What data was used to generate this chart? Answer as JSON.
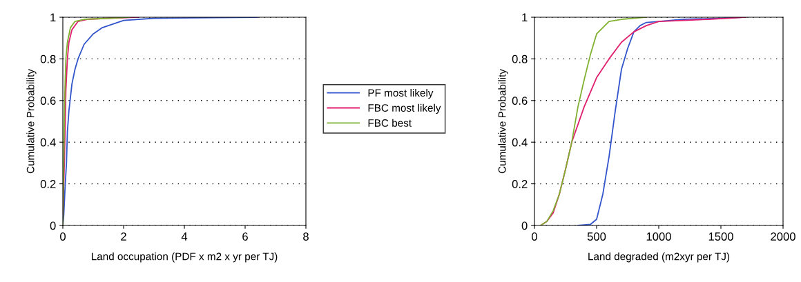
{
  "chart_data": [
    {
      "type": "line",
      "xlabel": "Land occupation (PDF x m2 x yr per TJ)",
      "ylabel": "Cumulative Probability",
      "xlim": [
        0,
        8
      ],
      "xticks": [
        0,
        2,
        4,
        6,
        8
      ],
      "ylim": [
        0,
        1
      ],
      "yticks": [
        0,
        0.2,
        0.4,
        0.6,
        0.8,
        1
      ],
      "grid": "y",
      "legend": "right",
      "marker": "none",
      "line_style": "solid",
      "series": [
        {
          "name": "PF most likely",
          "color": "#3355cc",
          "x": [
            0,
            0.03,
            0.08,
            0.12,
            0.15,
            0.2,
            0.3,
            0.4,
            0.5,
            0.7,
            1,
            1.3,
            1.7,
            2,
            3,
            5,
            6.4
          ],
          "values": [
            0,
            0.05,
            0.2,
            0.3,
            0.45,
            0.55,
            0.68,
            0.75,
            0.8,
            0.87,
            0.92,
            0.95,
            0.97,
            0.985,
            0.995,
            0.998,
            1
          ]
        },
        {
          "name": "FBC most likely",
          "color": "#e0206e",
          "x": [
            0,
            0.02,
            0.05,
            0.08,
            0.1,
            0.15,
            0.2,
            0.3,
            0.5,
            0.8,
            1.5,
            2.5
          ],
          "values": [
            0,
            0.15,
            0.3,
            0.5,
            0.65,
            0.8,
            0.88,
            0.94,
            0.98,
            0.99,
            0.995,
            1
          ]
        },
        {
          "name": "FBC best",
          "color": "#80b030",
          "x": [
            0,
            0.02,
            0.04,
            0.06,
            0.1,
            0.15,
            0.25,
            0.4,
            0.7,
            1.5,
            2.2
          ],
          "values": [
            0,
            0.2,
            0.4,
            0.6,
            0.8,
            0.88,
            0.95,
            0.98,
            0.99,
            0.995,
            1
          ]
        }
      ]
    },
    {
      "type": "line",
      "xlabel": "Land degraded (m2xyr per TJ)",
      "ylabel": "Cumulative Probability",
      "xlim": [
        0,
        2000
      ],
      "xticks": [
        0,
        500,
        1000,
        1500,
        2000
      ],
      "ylim": [
        0,
        1
      ],
      "yticks": [
        0,
        0.2,
        0.4,
        0.6,
        0.8,
        1
      ],
      "grid": "y",
      "marker": "none",
      "line_style": "solid",
      "series": [
        {
          "color": "#3355cc",
          "x": [
            350,
            450,
            500,
            550,
            600,
            650,
            700,
            750,
            800,
            850,
            900,
            1000,
            1200,
            1500,
            1700
          ],
          "values": [
            0,
            0.005,
            0.03,
            0.15,
            0.33,
            0.55,
            0.75,
            0.85,
            0.93,
            0.96,
            0.975,
            0.98,
            0.99,
            0.995,
            1
          ]
        },
        {
          "color": "#e0206e",
          "x": [
            50,
            100,
            150,
            200,
            250,
            300,
            400,
            500,
            600,
            700,
            800,
            900,
            1000,
            1200,
            1400,
            1700
          ],
          "values": [
            0,
            0.02,
            0.06,
            0.15,
            0.27,
            0.4,
            0.57,
            0.71,
            0.8,
            0.88,
            0.93,
            0.96,
            0.98,
            0.985,
            0.99,
            1
          ]
        },
        {
          "color": "#80b030",
          "x": [
            50,
            100,
            150,
            200,
            250,
            300,
            350,
            400,
            450,
            500,
            550,
            600,
            700,
            900
          ],
          "values": [
            0,
            0.02,
            0.07,
            0.15,
            0.27,
            0.4,
            0.57,
            0.7,
            0.82,
            0.92,
            0.95,
            0.98,
            0.99,
            1
          ]
        }
      ]
    }
  ]
}
